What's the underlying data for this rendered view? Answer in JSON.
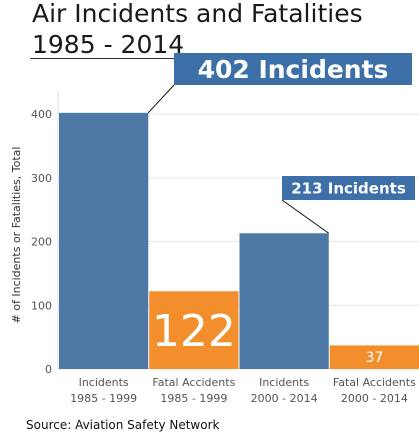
{
  "title_lines": [
    "Air Incidents and Fatalities",
    "1985 - 2014"
  ],
  "source": "Source: Aviation Safety Network",
  "colors": {
    "blue": "#4e79a7",
    "orange": "#f28e2b",
    "callout_bg": "#3d6fa8"
  },
  "chart_data": {
    "type": "bar",
    "categories": [
      [
        "Incidents",
        "1985 - 1999"
      ],
      [
        "Fatal Accidents",
        "1985 - 1999"
      ],
      [
        "Incidents",
        "2000 - 2014"
      ],
      [
        "Fatal Accidents",
        "2000 - 2014"
      ]
    ],
    "values": [
      402,
      122,
      213,
      37
    ],
    "bar_colors": [
      "blue",
      "orange",
      "blue",
      "orange"
    ],
    "bar_labels": [
      "",
      "122",
      "",
      "37"
    ],
    "ylabel": "# of Incidents or Fatalities, Total",
    "ylim": [
      0,
      430
    ],
    "yticks": [
      0,
      100,
      200,
      300,
      400
    ],
    "grid": true,
    "annotations": [
      {
        "text": "402 Incidents",
        "bar": 0
      },
      {
        "text": "213 Incidents",
        "bar": 2
      }
    ]
  }
}
